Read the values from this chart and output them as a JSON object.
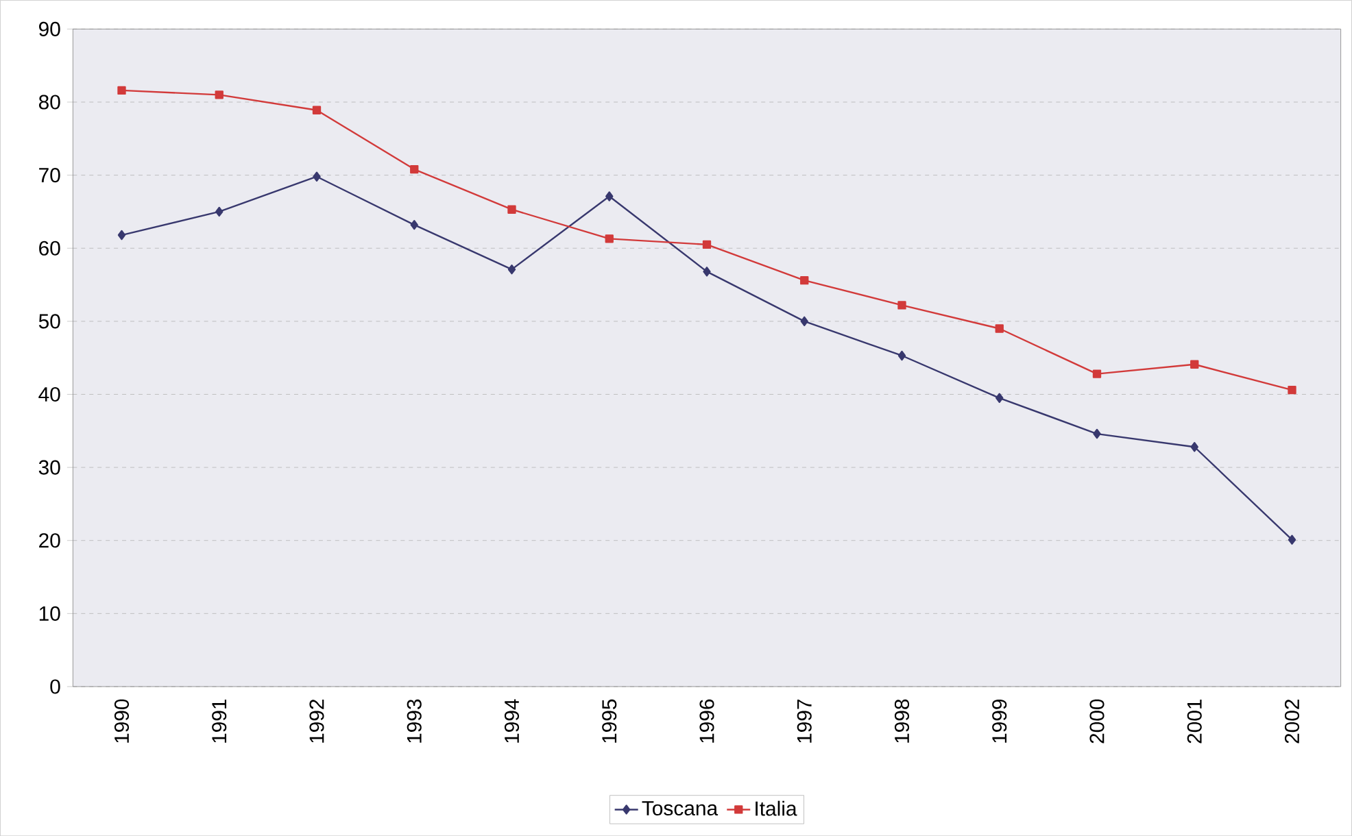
{
  "chart_data": {
    "type": "line",
    "categories": [
      "1990",
      "1991",
      "1992",
      "1993",
      "1994",
      "1995",
      "1996",
      "1997",
      "1998",
      "1999",
      "2000",
      "2001",
      "2002"
    ],
    "series": [
      {
        "name": "Toscana",
        "color": "#38386e",
        "marker": "diamond",
        "values": [
          61.8,
          65.0,
          69.8,
          63.2,
          57.1,
          67.1,
          56.8,
          50.0,
          45.3,
          39.5,
          34.6,
          32.8,
          20.1
        ]
      },
      {
        "name": "Italia",
        "color": "#d23a3a",
        "marker": "square",
        "values": [
          81.6,
          81.0,
          78.9,
          70.8,
          65.3,
          61.3,
          60.5,
          55.6,
          52.2,
          49.0,
          42.8,
          44.1,
          40.6
        ]
      }
    ],
    "ylim": [
      0,
      90
    ],
    "yticks": [
      0,
      10,
      20,
      30,
      40,
      50,
      60,
      70,
      80,
      90
    ],
    "grid": "y",
    "legend": "bottom",
    "line_style": "solid"
  }
}
